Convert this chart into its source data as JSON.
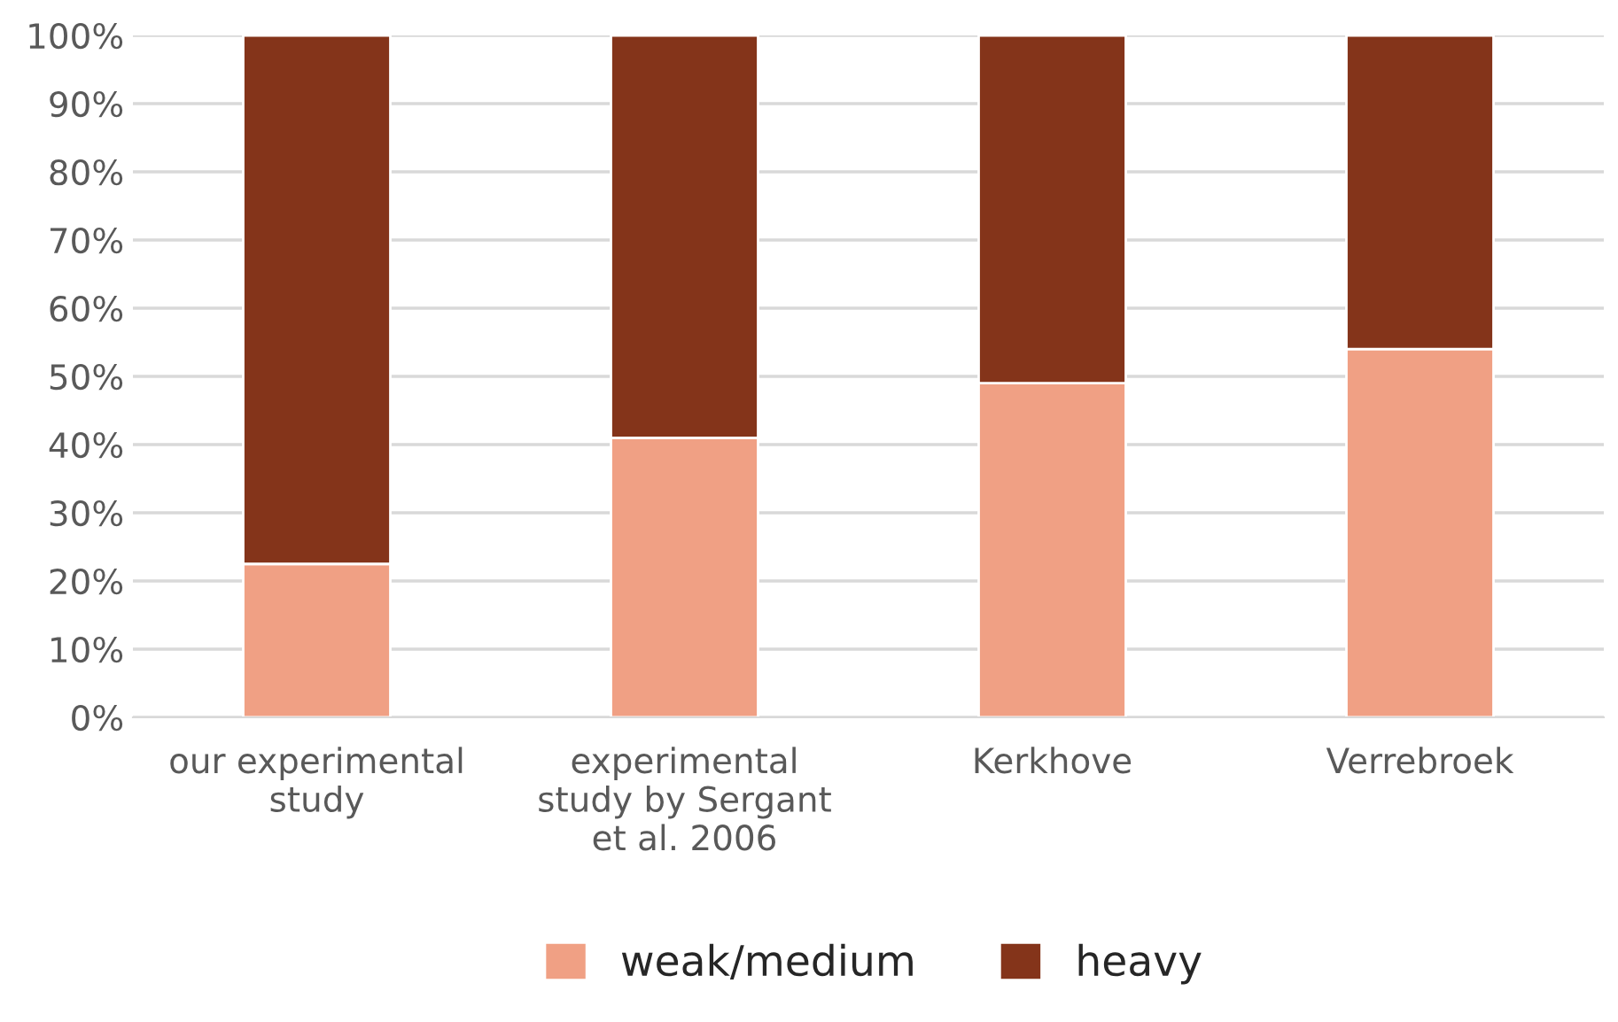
{
  "chart_data": {
    "type": "bar",
    "stacked": true,
    "categories": [
      "our experimental\nstudy",
      "experimental\nstudy by Sergant\net al. 2006",
      "Kerkhove",
      "Verrebroek"
    ],
    "series": [
      {
        "name": "weak/medium",
        "color": "#f0a084",
        "values": [
          22.5,
          41,
          49,
          54
        ]
      },
      {
        "name": "heavy",
        "color": "#84341a",
        "values": [
          77.5,
          59,
          51,
          46
        ]
      }
    ],
    "ylim": [
      0,
      100
    ],
    "yticks": [
      {
        "value": 0,
        "label": "0%"
      },
      {
        "value": 10,
        "label": "10%"
      },
      {
        "value": 20,
        "label": "20%"
      },
      {
        "value": 30,
        "label": "30%"
      },
      {
        "value": 40,
        "label": "40%"
      },
      {
        "value": 50,
        "label": "50%"
      },
      {
        "value": 60,
        "label": "60%"
      },
      {
        "value": 70,
        "label": "70%"
      },
      {
        "value": 80,
        "label": "80%"
      },
      {
        "value": 90,
        "label": "90%"
      },
      {
        "value": 100,
        "label": "100%"
      }
    ],
    "grid": "y",
    "legend": "bottom"
  }
}
